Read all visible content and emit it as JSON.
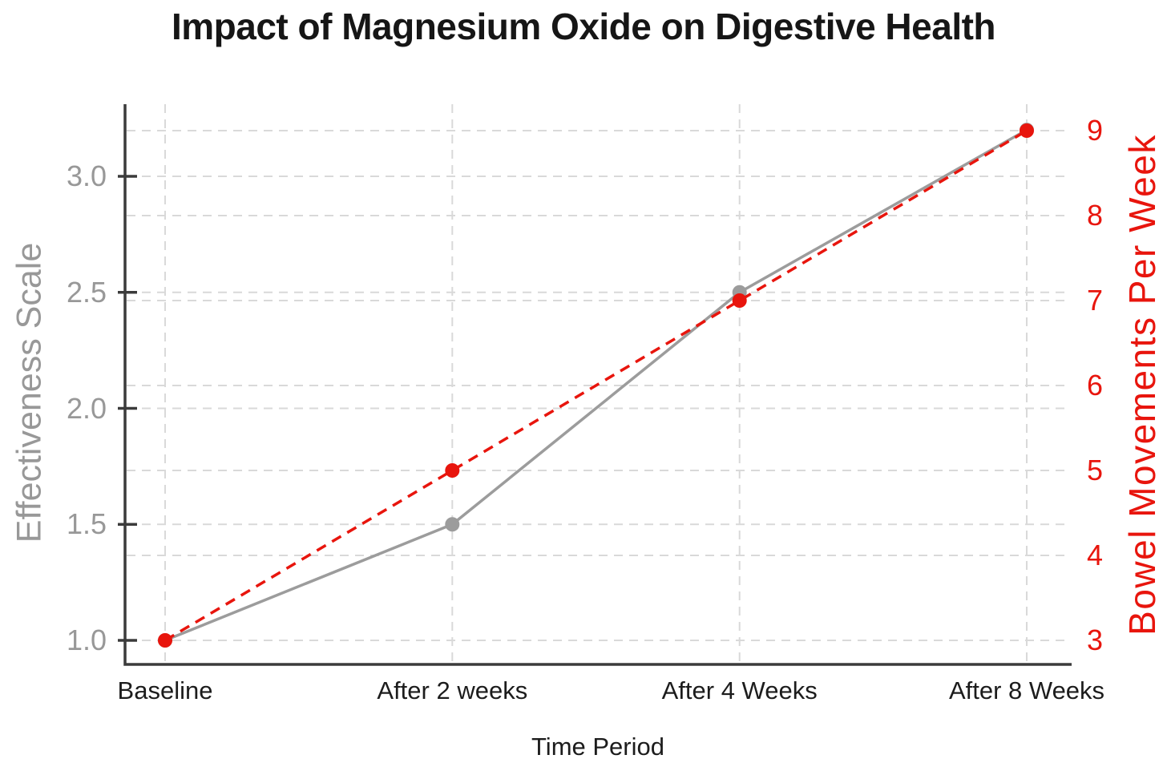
{
  "page": {
    "background": "#ffffff"
  },
  "chart_data": {
    "type": "line",
    "title": "Impact of Magnesium Oxide on Digestive Health",
    "xlabel": "Time Period",
    "categories": [
      "Baseline",
      "After 2 weeks",
      "After 4 Weeks",
      "After 8 Weeks"
    ],
    "series": [
      {
        "name": "Effectiveness Scale",
        "axis": "left",
        "values": [
          1.0,
          1.5,
          2.5,
          3.2
        ],
        "color": "#9c9c9c",
        "line_style": "solid",
        "marker": "circle"
      },
      {
        "name": "Bowel Movements Per Week",
        "axis": "right",
        "values": [
          3,
          5,
          7,
          9
        ],
        "color": "#e8150d",
        "line_style": "dashed",
        "marker": "circle"
      }
    ],
    "left_axis": {
      "label": "Effectiveness Scale",
      "tick_labels": [
        "1.0",
        "1.5",
        "2.0",
        "2.5",
        "3.0"
      ],
      "color": "#989898",
      "range": [
        0.88,
        3.33
      ]
    },
    "right_axis": {
      "label": "Bowel Movements Per Week",
      "tick_labels": [
        "3",
        "4",
        "5",
        "6",
        "7",
        "8",
        "9"
      ],
      "color": "#e8150d",
      "range": [
        2.8,
        9.35
      ]
    },
    "x_axis": {
      "tick_color": "#1c1c1c"
    },
    "grid": {
      "show": true,
      "style": "dashed",
      "color": "#d9d9d9"
    },
    "axis_line_color": "#3b3b3b",
    "legend": {
      "show": false
    },
    "title_color": "#161616"
  }
}
